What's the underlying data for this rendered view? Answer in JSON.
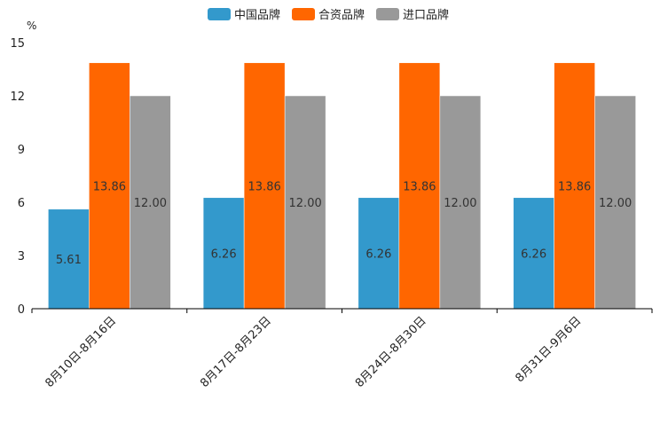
{
  "chart_data": {
    "type": "bar",
    "title": "",
    "unit": "%",
    "xlabel": "",
    "ylabel": "%",
    "ylim": [
      0,
      15
    ],
    "yticks": [
      0,
      3,
      6,
      9,
      12,
      15
    ],
    "categories": [
      "8月10日-8月16日",
      "8月17日-8月23日",
      "8月24日-8月30日",
      "8月31日-9月6日"
    ],
    "series": [
      {
        "name": "中国品牌",
        "color": "#3399cc",
        "values": [
          5.61,
          6.26,
          6.26,
          6.26
        ],
        "labels": [
          "5.61",
          "6.26",
          "6.26",
          "6.26"
        ]
      },
      {
        "name": "合资品牌",
        "color": "#ff6600",
        "values": [
          13.86,
          13.86,
          13.86,
          13.86
        ],
        "labels": [
          "13.86",
          "13.86",
          "13.86",
          "13.86"
        ]
      },
      {
        "name": "进口品牌",
        "color": "#999999",
        "values": [
          12.0,
          12.0,
          12.0,
          12.0
        ],
        "labels": [
          "12.00",
          "12.00",
          "12.00",
          "12.00"
        ]
      }
    ],
    "legend_position": "top-center",
    "grid": false
  }
}
